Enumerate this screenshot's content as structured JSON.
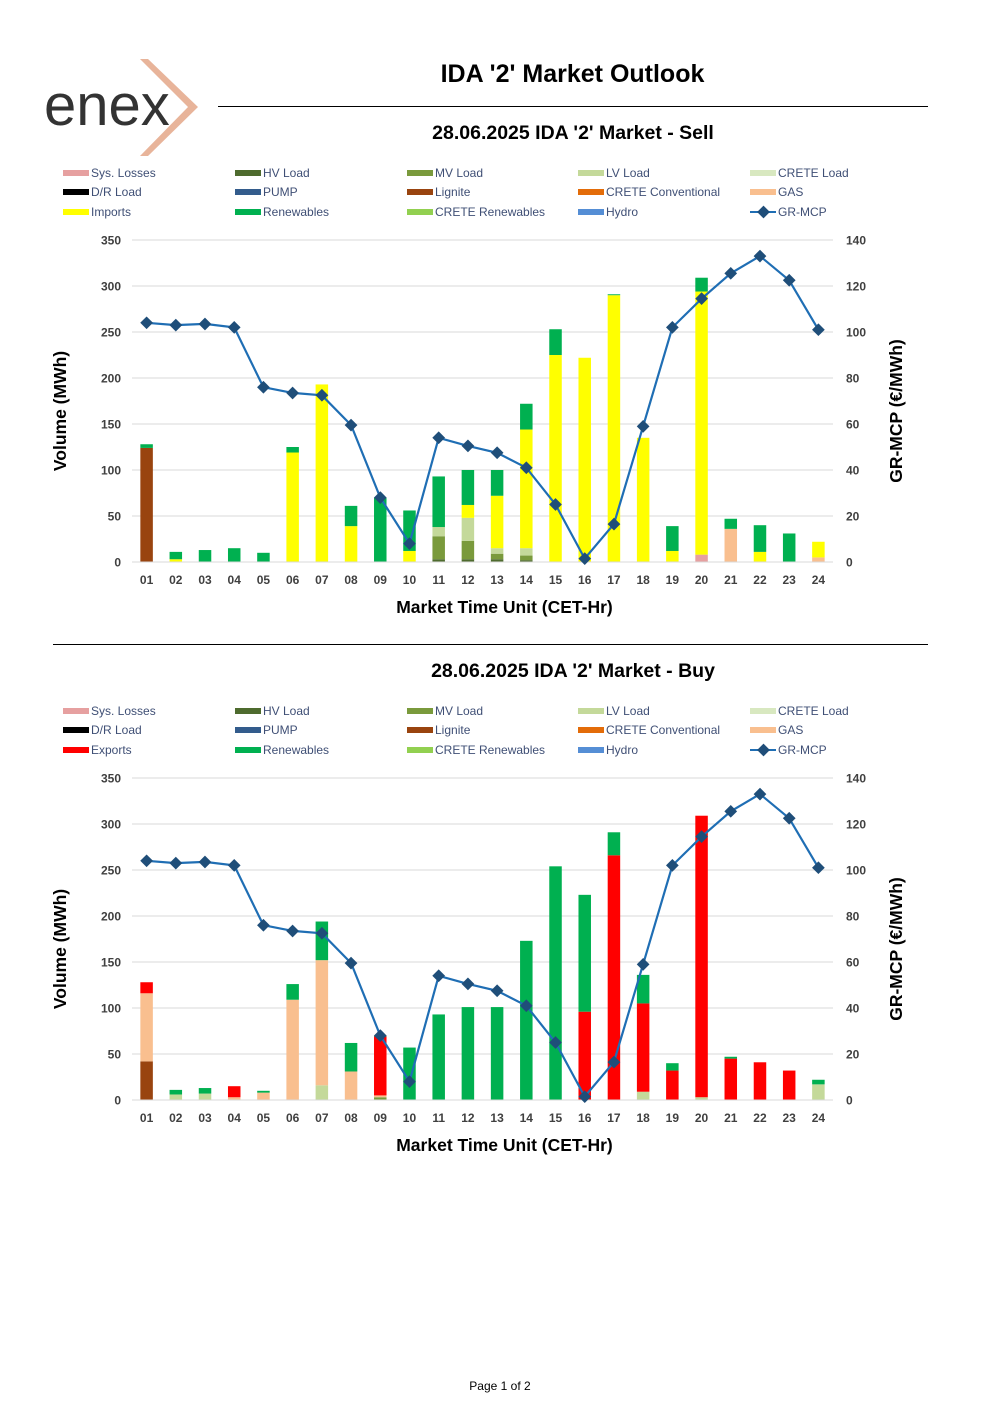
{
  "header": {
    "logo_text": "enex",
    "title": "IDA '2' Market Outlook"
  },
  "footer": {
    "page_label": "Page 1 of 2"
  },
  "colors": {
    "Sys. Losses": "#E6A0A0",
    "HV Load": "#4E6B2E",
    "MV Load": "#7A9A3C",
    "LV Load": "#C4D99A",
    "CRETE Load": "#D8E8C0",
    "D/R Load": "#000000",
    "PUMP": "#335C8C",
    "Lignite": "#99440F",
    "CRETE Conventional": "#E36C09",
    "GAS": "#F9BF8F",
    "Imports": "#FFFF00",
    "Exports": "#FF0000",
    "Renewables": "#00B050",
    "CRETE Renewables": "#92D050",
    "Hydro": "#558ED5",
    "GR-MCP": "#1F6EB4",
    "GR-MCP-marker": "#1F4E79"
  },
  "chart_data": [
    {
      "type": "bar",
      "title": "28.06.2025  IDA '2' Market - Sell",
      "xlabel": "Market Time Unit (CET-Hr)",
      "ylabel": "Volume (MWh)",
      "y2label": "GR-MCP (€/MWh)",
      "ylim": [
        0,
        350
      ],
      "y2lim": [
        0,
        140
      ],
      "yticks": [
        0,
        50,
        100,
        150,
        200,
        250,
        300,
        350
      ],
      "y2ticks": [
        0,
        20,
        40,
        60,
        80,
        100,
        120,
        140
      ],
      "legend": [
        "Sys. Losses",
        "HV Load",
        "MV Load",
        "LV Load",
        "CRETE Load",
        "D/R Load",
        "PUMP",
        "Lignite",
        "CRETE Conventional",
        "GAS",
        "Imports",
        "Renewables",
        "CRETE Renewables",
        "Hydro",
        "GR-MCP"
      ],
      "categories": [
        "01",
        "02",
        "03",
        "04",
        "05",
        "06",
        "07",
        "08",
        "09",
        "10",
        "11",
        "12",
        "13",
        "14",
        "15",
        "16",
        "17",
        "18",
        "19",
        "20",
        "21",
        "22",
        "23",
        "24"
      ],
      "series": [
        {
          "name": "Sys. Losses",
          "values": [
            0,
            0,
            0,
            0,
            0,
            0,
            0,
            0,
            0,
            0,
            0,
            0,
            0,
            0,
            0,
            0,
            0,
            0,
            0,
            8,
            0,
            0,
            0,
            0
          ]
        },
        {
          "name": "HV Load",
          "values": [
            0,
            0,
            0,
            0,
            0,
            0,
            0,
            0,
            0,
            0,
            3,
            3,
            3,
            2,
            0,
            0,
            0,
            0,
            0,
            0,
            0,
            0,
            0,
            0
          ]
        },
        {
          "name": "MV Load",
          "values": [
            0,
            0,
            0,
            0,
            0,
            0,
            0,
            0,
            0,
            0,
            25,
            20,
            6,
            5,
            0,
            0,
            0,
            0,
            0,
            0,
            0,
            0,
            0,
            0
          ]
        },
        {
          "name": "LV Load",
          "values": [
            0,
            0,
            0,
            0,
            0,
            0,
            0,
            0,
            0,
            0,
            10,
            25,
            6,
            8,
            0,
            0,
            0,
            0,
            0,
            0,
            0,
            0,
            0,
            0
          ]
        },
        {
          "name": "Lignite",
          "values": [
            124,
            0,
            0,
            0,
            0,
            0,
            0,
            0,
            0,
            0,
            0,
            0,
            0,
            0,
            0,
            0,
            0,
            0,
            0,
            0,
            0,
            0,
            0,
            0
          ]
        },
        {
          "name": "GAS",
          "values": [
            0,
            0,
            0,
            0,
            0,
            0,
            0,
            0,
            0,
            0,
            0,
            0,
            0,
            0,
            0,
            0,
            0,
            0,
            0,
            0,
            36,
            0,
            0,
            5
          ]
        },
        {
          "name": "Imports",
          "values": [
            0,
            3,
            0,
            0,
            0,
            119,
            193,
            39,
            0,
            12,
            0,
            14,
            57,
            129,
            225,
            222,
            290,
            135,
            12,
            286,
            0,
            11,
            0,
            17
          ]
        },
        {
          "name": "Renewables",
          "values": [
            4,
            8,
            13,
            15,
            10,
            6,
            0,
            22,
            70,
            44,
            55,
            38,
            28,
            28,
            28,
            0,
            1,
            0,
            27,
            15,
            11,
            29,
            31,
            0
          ]
        }
      ],
      "line": {
        "name": "GR-MCP",
        "values": [
          104,
          103,
          103.5,
          102,
          76,
          73.5,
          72.5,
          59.5,
          28,
          8,
          54,
          50.5,
          47.5,
          41,
          25,
          1.5,
          16.5,
          59,
          102,
          114.5,
          125.5,
          133,
          122.5,
          101
        ]
      }
    },
    {
      "type": "bar",
      "title": "28.06.2025  IDA '2' Market - Buy",
      "xlabel": "Market Time Unit (CET-Hr)",
      "ylabel": "Volume (MWh)",
      "y2label": "GR-MCP (€/MWh)",
      "ylim": [
        0,
        350
      ],
      "y2lim": [
        0,
        140
      ],
      "yticks": [
        0,
        50,
        100,
        150,
        200,
        250,
        300,
        350
      ],
      "y2ticks": [
        0,
        20,
        40,
        60,
        80,
        100,
        120,
        140
      ],
      "legend": [
        "Sys. Losses",
        "HV Load",
        "MV Load",
        "LV Load",
        "CRETE Load",
        "D/R Load",
        "PUMP",
        "Lignite",
        "CRETE Conventional",
        "GAS",
        "Exports",
        "Renewables",
        "CRETE Renewables",
        "Hydro",
        "GR-MCP"
      ],
      "categories": [
        "01",
        "02",
        "03",
        "04",
        "05",
        "06",
        "07",
        "08",
        "09",
        "10",
        "11",
        "12",
        "13",
        "14",
        "15",
        "16",
        "17",
        "18",
        "19",
        "20",
        "21",
        "22",
        "23",
        "24"
      ],
      "series": [
        {
          "name": "MV Load",
          "values": [
            0,
            0,
            0,
            0,
            0,
            0,
            0,
            0,
            3,
            0,
            0,
            0,
            0,
            0,
            0,
            0,
            0,
            0,
            0,
            0,
            0,
            0,
            0,
            0
          ]
        },
        {
          "name": "LV Load",
          "values": [
            0,
            6,
            7,
            0,
            0,
            0,
            16,
            0,
            0,
            0,
            0,
            0,
            0,
            0,
            0,
            0,
            0,
            9,
            0,
            3,
            0,
            0,
            0,
            17
          ]
        },
        {
          "name": "Lignite",
          "values": [
            42,
            0,
            0,
            0,
            0,
            0,
            0,
            0,
            0,
            0,
            0,
            0,
            0,
            0,
            0,
            0,
            0,
            0,
            0,
            0,
            0,
            0,
            0,
            0
          ]
        },
        {
          "name": "GAS",
          "values": [
            74,
            0,
            0,
            3,
            8,
            109,
            136,
            31,
            2,
            0,
            0,
            0,
            0,
            0,
            0,
            0,
            0,
            0,
            0,
            0,
            0,
            0,
            0,
            0
          ]
        },
        {
          "name": "Exports",
          "values": [
            12,
            0,
            0,
            12,
            0,
            0,
            0,
            0,
            64,
            0,
            0,
            0,
            0,
            0,
            0,
            96,
            266,
            96,
            32,
            306,
            45,
            41,
            32,
            0
          ]
        },
        {
          "name": "Renewables",
          "values": [
            0,
            5,
            6,
            0,
            2,
            17,
            42,
            31,
            1,
            57,
            93,
            101,
            101,
            173,
            254,
            127,
            25,
            31,
            8,
            0,
            2,
            0,
            0,
            5
          ]
        }
      ],
      "line": {
        "name": "GR-MCP",
        "values": [
          104,
          103,
          103.5,
          102,
          76,
          73.5,
          72.5,
          59.5,
          28,
          8,
          54,
          50.5,
          47.5,
          41,
          25,
          1.5,
          16.5,
          59,
          102,
          114.5,
          125.5,
          133,
          122.5,
          101
        ]
      }
    }
  ]
}
